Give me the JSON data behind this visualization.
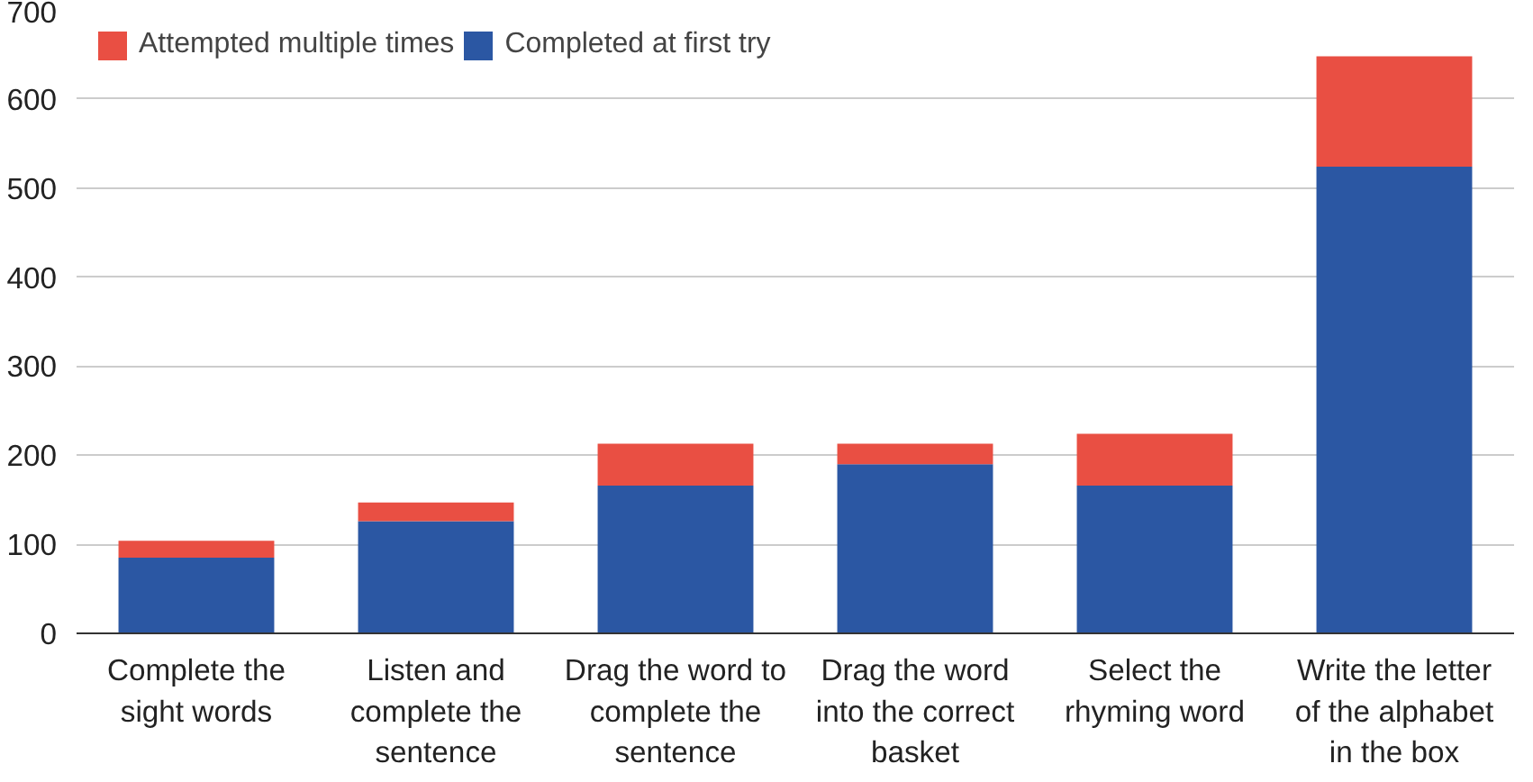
{
  "chart_data": {
    "type": "bar",
    "stacked": true,
    "categories": [
      "Complete the sight words",
      "Listen and complete the sentence",
      "Drag the word to complete the sentence",
      "Drag the word into the correct basket",
      "Select the rhyming word",
      "Write the letter of the alphabet in the box"
    ],
    "series": [
      {
        "name": "Completed at first try",
        "color": "#2b57a3",
        "values": [
          85,
          126,
          166,
          190,
          166,
          524
        ]
      },
      {
        "name": "Attempted multiple times",
        "color": "#e94f43",
        "values": [
          19,
          21,
          47,
          23,
          58,
          124
        ]
      }
    ],
    "ylim": [
      0,
      700
    ],
    "yticks": [
      0,
      100,
      200,
      300,
      400,
      500,
      600,
      700
    ],
    "grid": "y",
    "legend": "top left"
  }
}
